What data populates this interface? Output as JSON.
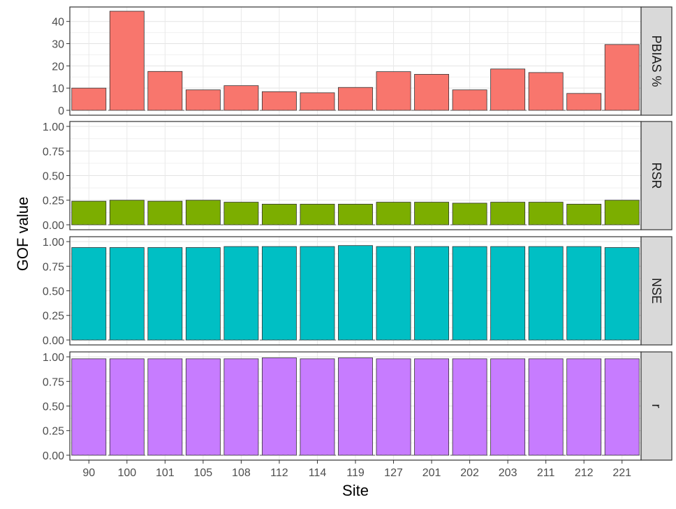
{
  "chart_data": {
    "type": "bar",
    "xlabel": "Site",
    "ylabel": "GOF value",
    "categories": [
      "90",
      "100",
      "101",
      "105",
      "108",
      "112",
      "114",
      "119",
      "127",
      "201",
      "202",
      "203",
      "211",
      "212",
      "221"
    ],
    "panels": [
      {
        "name": "PBIAS %",
        "color": "#F8766D",
        "ylim": [
          -2.2,
          46.5
        ],
        "yticks": [
          0,
          10,
          20,
          30,
          40
        ],
        "ytick_labels": [
          "0",
          "10",
          "20",
          "30",
          "40"
        ],
        "values": [
          10.0,
          44.6,
          17.5,
          9.2,
          11.1,
          8.4,
          7.9,
          10.3,
          17.4,
          16.2,
          9.2,
          18.6,
          17.0,
          7.6,
          29.6
        ]
      },
      {
        "name": "RSR",
        "color": "#7CAE00",
        "ylim": [
          -0.05,
          1.05
        ],
        "yticks": [
          0,
          0.25,
          0.5,
          0.75,
          1.0
        ],
        "ytick_labels": [
          "0.00",
          "0.25",
          "0.50",
          "0.75",
          "1.00"
        ],
        "values": [
          0.24,
          0.25,
          0.24,
          0.25,
          0.23,
          0.21,
          0.21,
          0.21,
          0.23,
          0.23,
          0.22,
          0.23,
          0.23,
          0.21,
          0.25
        ]
      },
      {
        "name": "NSE",
        "color": "#00BFC4",
        "ylim": [
          -0.05,
          1.05
        ],
        "yticks": [
          0,
          0.25,
          0.5,
          0.75,
          1.0
        ],
        "ytick_labels": [
          "0.00",
          "0.25",
          "0.50",
          "0.75",
          "1.00"
        ],
        "values": [
          0.94,
          0.94,
          0.94,
          0.94,
          0.95,
          0.95,
          0.95,
          0.96,
          0.95,
          0.95,
          0.95,
          0.95,
          0.95,
          0.95,
          0.94
        ]
      },
      {
        "name": "r",
        "color": "#C77CFF",
        "ylim": [
          -0.05,
          1.05
        ],
        "yticks": [
          0,
          0.25,
          0.5,
          0.75,
          1.0
        ],
        "ytick_labels": [
          "0.00",
          "0.25",
          "0.50",
          "0.75",
          "1.00"
        ],
        "values": [
          0.98,
          0.98,
          0.98,
          0.98,
          0.98,
          0.99,
          0.98,
          0.99,
          0.98,
          0.98,
          0.98,
          0.98,
          0.98,
          0.98,
          0.98
        ]
      }
    ],
    "grid": true,
    "reference_line": 0,
    "legend": "none"
  }
}
